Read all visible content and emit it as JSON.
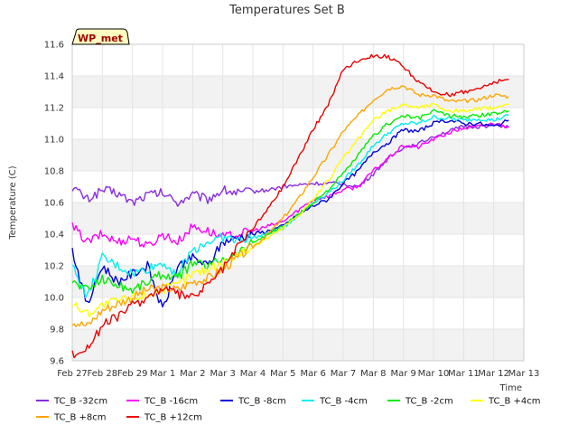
{
  "chart_data": {
    "type": "line",
    "title": "Temperatures Set B",
    "xlabel": "Time",
    "ylabel": "Temperature (C)",
    "badge": "WP_met",
    "ylim": [
      9.6,
      11.6
    ],
    "yticks": [
      "9.6",
      "9.8",
      "10.0",
      "10.2",
      "10.4",
      "10.6",
      "10.8",
      "11.0",
      "11.2",
      "11.4",
      "11.6"
    ],
    "xticks": [
      "Feb 27",
      "Feb 28",
      "Feb 29",
      "Mar 1",
      "Mar 2",
      "Mar 3",
      "Mar 4",
      "Mar 5",
      "Mar 6",
      "Mar 7",
      "Mar 8",
      "Mar 9",
      "Mar 10",
      "Mar 11",
      "Mar 12",
      "Mar 13"
    ],
    "x": [
      "Feb 27",
      "Feb 27 12:00",
      "Feb 28",
      "Feb 28 12:00",
      "Feb 29",
      "Feb 29 12:00",
      "Mar 1",
      "Mar 1 12:00",
      "Mar 2",
      "Mar 2 12:00",
      "Mar 3",
      "Mar 3 12:00",
      "Mar 4",
      "Mar 4 12:00",
      "Mar 5",
      "Mar 5 12:00",
      "Mar 6",
      "Mar 6 12:00",
      "Mar 7",
      "Mar 7 12:00",
      "Mar 8",
      "Mar 8 12:00",
      "Mar 9",
      "Mar 9 12:00",
      "Mar 10",
      "Mar 10 12:00",
      "Mar 11",
      "Mar 11 12:00",
      "Mar 12",
      "Mar 12 06:00"
    ],
    "grid": true,
    "legend_position": "bottom",
    "series": [
      {
        "name": "TC_B -32cm",
        "color": "#8a2be2",
        "values": [
          10.7,
          10.62,
          10.68,
          10.66,
          10.6,
          10.65,
          10.66,
          10.6,
          10.65,
          10.62,
          10.68,
          10.66,
          10.67,
          10.68,
          10.7,
          10.71,
          10.72,
          10.72,
          10.72,
          10.7,
          10.78,
          10.88,
          10.95,
          10.97,
          11.02,
          11.05,
          11.08,
          11.08,
          11.09,
          11.08
        ]
      },
      {
        "name": "TC_B -16cm",
        "color": "#ff00ff",
        "values": [
          10.45,
          10.35,
          10.4,
          10.35,
          10.38,
          10.32,
          10.4,
          10.35,
          10.45,
          10.42,
          10.38,
          10.4,
          10.42,
          10.45,
          10.48,
          10.55,
          10.62,
          10.64,
          10.68,
          10.7,
          10.8,
          10.88,
          10.96,
          10.95,
          11.0,
          11.04,
          11.07,
          11.08,
          11.1,
          11.08
        ]
      },
      {
        "name": "TC_B -8cm",
        "color": "#0000dd",
        "values": [
          10.3,
          9.95,
          10.2,
          10.1,
          10.15,
          10.2,
          9.92,
          10.2,
          10.25,
          10.2,
          10.35,
          10.38,
          10.4,
          10.42,
          10.45,
          10.52,
          10.58,
          10.62,
          10.72,
          10.8,
          10.92,
          10.98,
          11.06,
          11.05,
          11.1,
          11.12,
          11.1,
          11.1,
          11.08,
          11.12
        ]
      },
      {
        "name": "TC_B -4cm",
        "color": "#00eeee",
        "values": [
          10.2,
          10.0,
          10.25,
          10.2,
          10.15,
          10.18,
          10.22,
          10.15,
          10.3,
          10.35,
          10.38,
          10.36,
          10.38,
          10.4,
          10.44,
          10.52,
          10.6,
          10.66,
          10.74,
          10.84,
          10.96,
          11.04,
          11.1,
          11.1,
          11.14,
          11.13,
          11.12,
          11.13,
          11.12,
          11.15
        ]
      },
      {
        "name": "TC_B -2cm",
        "color": "#00ee00",
        "values": [
          10.1,
          10.05,
          10.12,
          10.08,
          10.05,
          10.1,
          10.15,
          10.12,
          10.22,
          10.2,
          10.25,
          10.28,
          10.35,
          10.4,
          10.45,
          10.52,
          10.6,
          10.68,
          10.78,
          10.9,
          11.02,
          11.1,
          11.15,
          11.13,
          11.18,
          11.15,
          11.14,
          11.15,
          11.16,
          11.18
        ]
      },
      {
        "name": "TC_B +4cm",
        "color": "#ffff00",
        "values": [
          9.96,
          9.9,
          9.95,
          9.98,
          10.0,
          10.02,
          10.05,
          10.08,
          10.15,
          10.18,
          10.22,
          10.27,
          10.32,
          10.38,
          10.44,
          10.52,
          10.62,
          10.74,
          10.88,
          11.0,
          11.12,
          11.18,
          11.22,
          11.2,
          11.22,
          11.18,
          11.18,
          11.19,
          11.2,
          11.22
        ]
      },
      {
        "name": "TC_B +8cm",
        "color": "#ffa500",
        "values": [
          9.85,
          9.82,
          9.92,
          9.96,
          10.0,
          10.05,
          10.06,
          10.05,
          10.1,
          10.12,
          10.18,
          10.25,
          10.32,
          10.4,
          10.5,
          10.62,
          10.76,
          10.9,
          11.05,
          11.15,
          11.25,
          11.32,
          11.34,
          11.28,
          11.28,
          11.24,
          11.24,
          11.25,
          11.28,
          11.27
        ]
      },
      {
        "name": "TC_B +12cm",
        "color": "#ee0000",
        "values": [
          9.64,
          9.68,
          9.82,
          9.88,
          9.95,
          10.0,
          10.06,
          10.02,
          10.0,
          10.08,
          10.18,
          10.32,
          10.44,
          10.56,
          10.7,
          10.88,
          11.06,
          11.22,
          11.44,
          11.5,
          11.53,
          11.52,
          11.46,
          11.36,
          11.3,
          11.28,
          11.3,
          11.32,
          11.36,
          11.38
        ]
      }
    ]
  }
}
